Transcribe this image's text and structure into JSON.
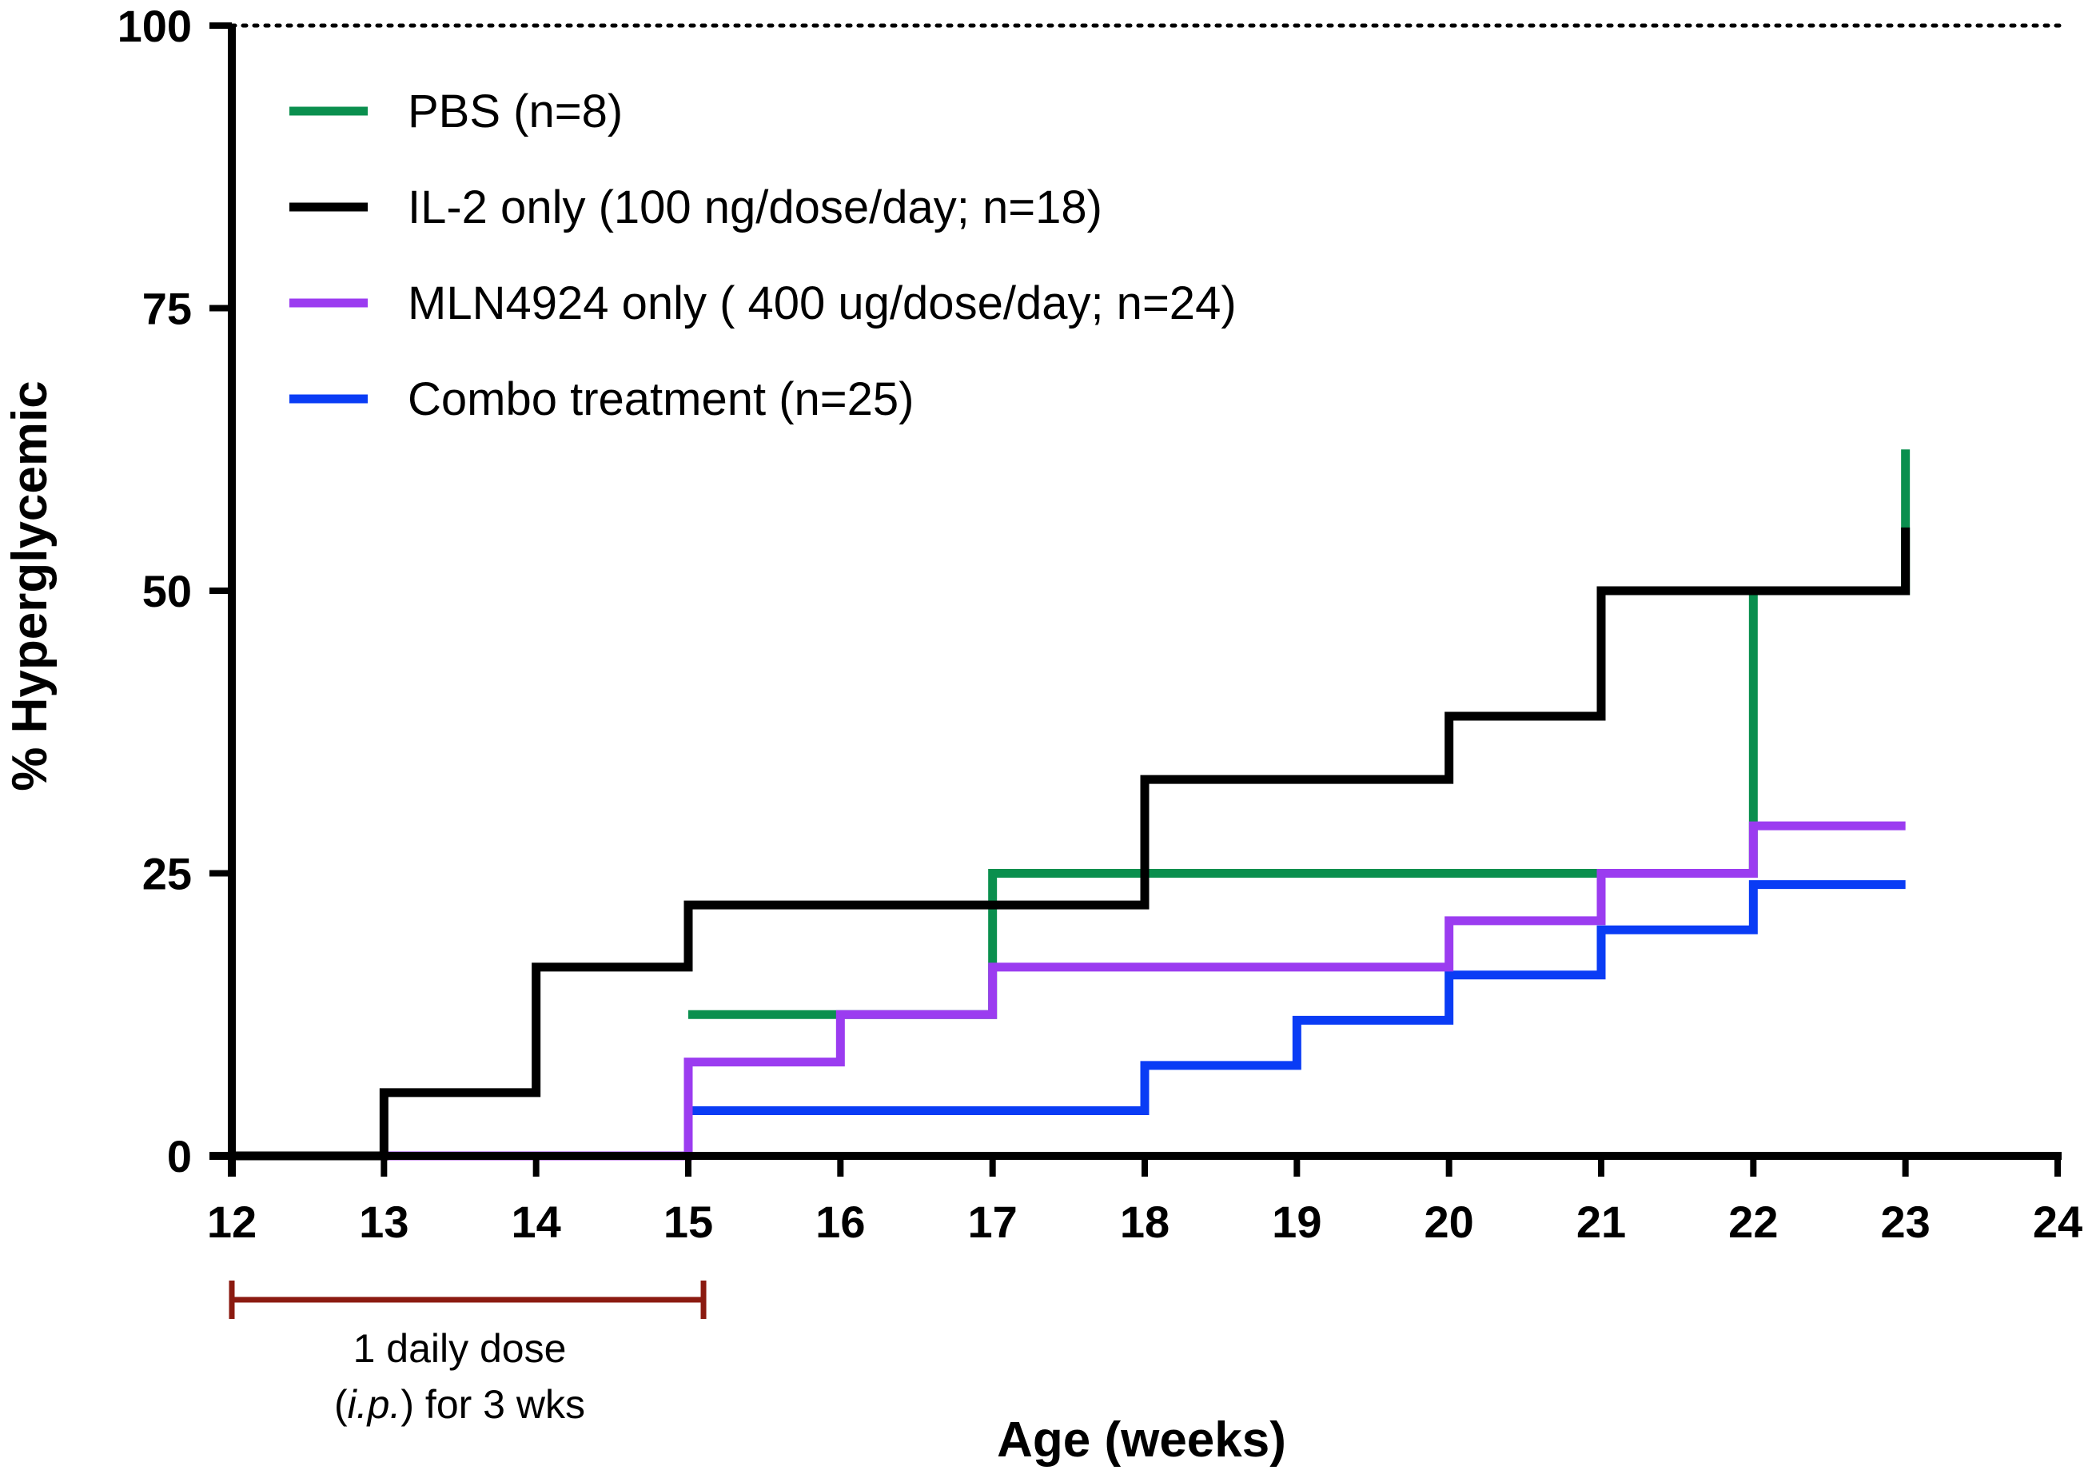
{
  "chart_data": {
    "type": "line",
    "step": true,
    "title": "",
    "xlabel": "Age (weeks)",
    "ylabel": "% Hyperglycemic",
    "xlim": [
      12,
      24
    ],
    "ylim": [
      0,
      100
    ],
    "xticks": [
      12,
      13,
      14,
      15,
      16,
      17,
      18,
      19,
      20,
      21,
      22,
      23,
      24
    ],
    "yticks": [
      0,
      25,
      50,
      75,
      100
    ],
    "reference_line": {
      "y": 100,
      "style": "dotted"
    },
    "legend_position": "top-left",
    "series": [
      {
        "name": "PBS (n=8)",
        "color": "#0a8f4e",
        "x": [
          15,
          16,
          17,
          22,
          23
        ],
        "y": [
          12.5,
          12.5,
          25,
          50,
          62.5
        ]
      },
      {
        "name": "IL-2 only (100 ng/dose/day; n=18)",
        "color": "#000000",
        "x": [
          12,
          13,
          14,
          15,
          18,
          20,
          21,
          23
        ],
        "y": [
          0,
          5.6,
          16.7,
          22.2,
          33.3,
          38.9,
          50,
          55.6
        ]
      },
      {
        "name": "MLN4924 only ( 400 ug/dose/day; n=24)",
        "color": "#9b3cf0",
        "x": [
          13,
          15,
          16,
          17,
          20,
          21,
          22,
          23
        ],
        "y": [
          0,
          8.3,
          12.5,
          16.7,
          20.8,
          25,
          29.2,
          29.2
        ]
      },
      {
        "name": "Combo treatment (n=25)",
        "color": "#0a3cf5",
        "x": [
          15,
          18,
          19,
          20,
          21,
          22,
          23
        ],
        "y": [
          4,
          8,
          12,
          16,
          20,
          24,
          24
        ]
      }
    ],
    "annotation": {
      "bracket_x": [
        12,
        15.1
      ],
      "bracket_color": "#8b1a10",
      "line1": "1 daily dose",
      "line2_italic": "i.p.",
      "line2_rest": " for 3 wks"
    }
  }
}
